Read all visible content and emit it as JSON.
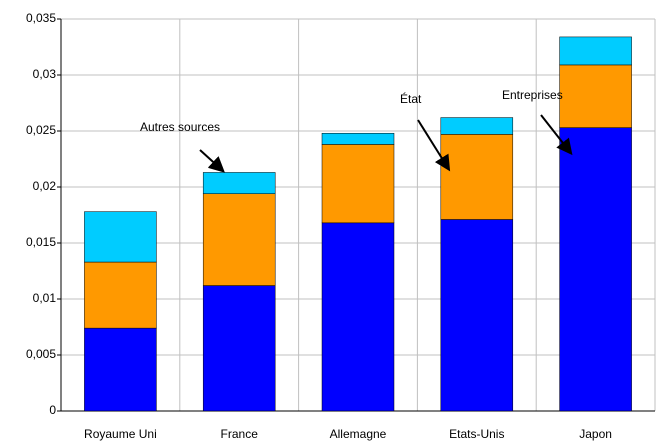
{
  "chart_data": {
    "type": "stacked-bar",
    "categories": [
      "Royaume Uni",
      "France",
      "Allemagne",
      "Etats-Unis",
      "Japon"
    ],
    "series": [
      {
        "name": "Entreprises",
        "color": "#0000ff",
        "values": [
          0.0074,
          0.0112,
          0.0168,
          0.0171,
          0.0253
        ]
      },
      {
        "name": "État",
        "color": "#ff9900",
        "values": [
          0.0059,
          0.0082,
          0.007,
          0.0076,
          0.0056
        ]
      },
      {
        "name": "Autres sources",
        "color": "#00ccff",
        "values": [
          0.0045,
          0.0019,
          0.001,
          0.0015,
          0.0025
        ]
      }
    ],
    "ylim": [
      0,
      0.035
    ],
    "yticks": [
      0,
      {
        "value": 0.005,
        "label": "0,005"
      },
      {
        "value": 0.01,
        "label": "0,01"
      },
      {
        "value": 0.015,
        "label": "0,015"
      },
      {
        "value": 0.02,
        "label": "0,02"
      },
      {
        "value": 0.025,
        "label": "0,025"
      },
      {
        "value": 0.03,
        "label": "0,03"
      },
      {
        "value": 0.035,
        "label": "0,035"
      }
    ],
    "grid": true
  }
}
